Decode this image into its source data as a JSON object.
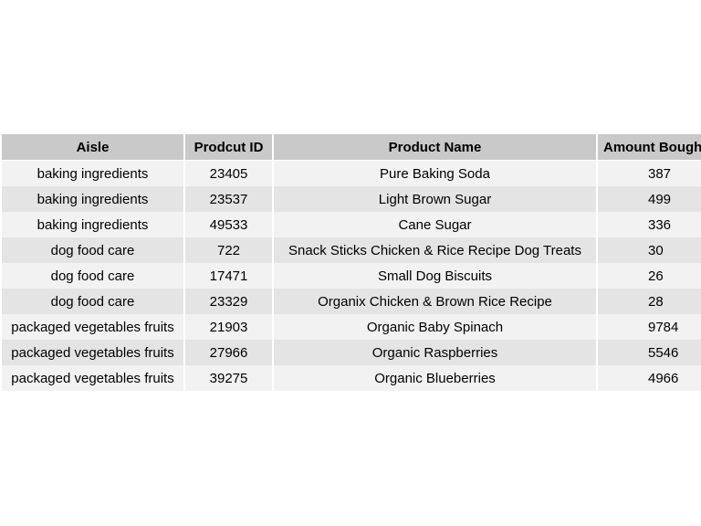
{
  "table": {
    "headers": [
      "Aisle",
      "Prodcut ID",
      "Product Name",
      "Amount Bought"
    ],
    "rows": [
      [
        "baking ingredients",
        "23405",
        "Pure Baking Soda",
        "387"
      ],
      [
        "baking ingredients",
        "23537",
        "Light Brown Sugar",
        "499"
      ],
      [
        "baking ingredients",
        "49533",
        "Cane Sugar",
        "336"
      ],
      [
        "dog food care",
        "722",
        "Snack Sticks Chicken & Rice Recipe Dog Treats",
        "30"
      ],
      [
        "dog food care",
        "17471",
        "Small Dog Biscuits",
        "26"
      ],
      [
        "dog food care",
        "23329",
        "Organix Chicken & Brown Rice Recipe",
        "28"
      ],
      [
        "packaged vegetables fruits",
        "21903",
        "Organic Baby Spinach",
        "9784"
      ],
      [
        "packaged vegetables fruits",
        "27966",
        "Organic Raspberries",
        "5546"
      ],
      [
        "packaged vegetables fruits",
        "39275",
        "Organic Blueberries",
        "4966"
      ]
    ]
  },
  "colors": {
    "header_bg": "#c9c9c9",
    "row_light": "#f2f2f2",
    "row_dark": "#e4e4e4",
    "separator": "#ffffff"
  }
}
